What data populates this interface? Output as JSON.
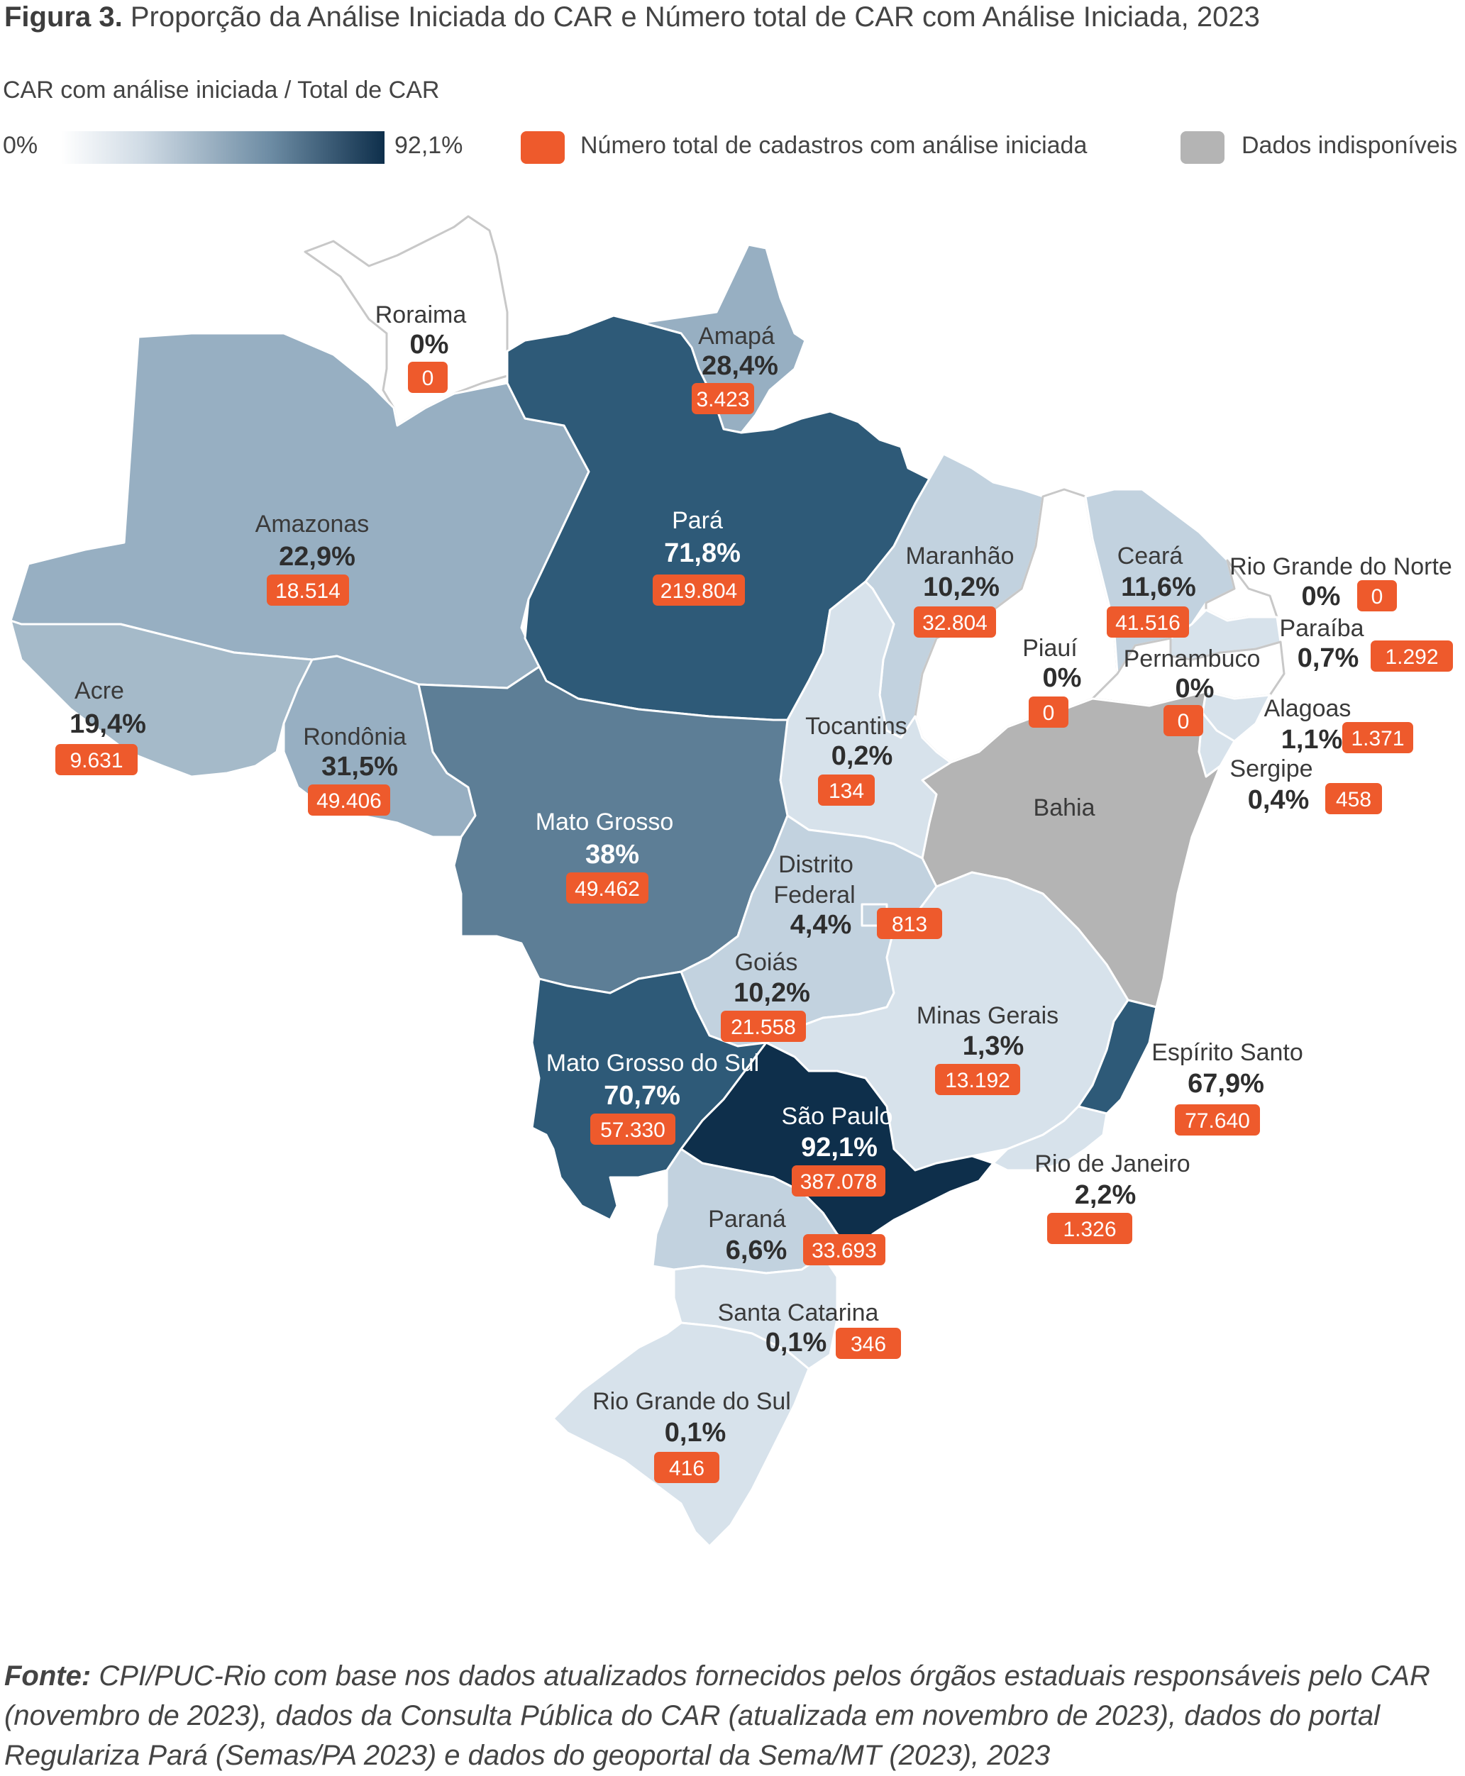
{
  "title": {
    "figure_label": "Figura 3.",
    "text": "Proporção da Análise Iniciada do CAR e Número total de CAR com Análise Iniciada, 2023"
  },
  "legend": {
    "subtitle": "CAR com análise iniciada / Total de CAR",
    "scale_min": "0%",
    "scale_max": "92,1%",
    "count_label": "Número total de cadastros com análise iniciada",
    "unavailable_label": "Dados indisponíveis"
  },
  "colors": {
    "badge": "#ee5a2c",
    "unavailable": "#b4b4b4",
    "scale_low": "#ffffff",
    "scale_high": "#0e2f4b"
  },
  "states": [
    {
      "name": "Roraima",
      "pct": "0%",
      "count": "0",
      "fill": "#ffffff"
    },
    {
      "name": "Amapá",
      "pct": "28,4%",
      "count": "3.423",
      "fill": "#97afc2"
    },
    {
      "name": "Amazonas",
      "pct": "22,9%",
      "count": "18.514",
      "fill": "#97afc2"
    },
    {
      "name": "Pará",
      "pct": "71,8%",
      "count": "219.804",
      "fill": "#2e5a78"
    },
    {
      "name": "Maranhão",
      "pct": "10,2%",
      "count": "32.804",
      "fill": "#c2d2df"
    },
    {
      "name": "Ceará",
      "pct": "11,6%",
      "count": "41.516",
      "fill": "#c2d2df"
    },
    {
      "name": "Rio Grande do Norte",
      "pct": "0%",
      "count": "0",
      "fill": "#ffffff"
    },
    {
      "name": "Paraíba",
      "pct": "0,7%",
      "count": "1.292",
      "fill": "#d7e2eb"
    },
    {
      "name": "Piauí",
      "pct": "0%",
      "count": "0",
      "fill": "#ffffff"
    },
    {
      "name": "Pernambuco",
      "pct": "0%",
      "count": "0",
      "fill": "#ffffff"
    },
    {
      "name": "Alagoas",
      "pct": "1,1%",
      "count": "1.371",
      "fill": "#d7e2eb"
    },
    {
      "name": "Sergipe",
      "pct": "0,4%",
      "count": "458",
      "fill": "#d7e2eb"
    },
    {
      "name": "Acre",
      "pct": "19,4%",
      "count": "9.631",
      "fill": "#a5bac9"
    },
    {
      "name": "Rondônia",
      "pct": "31,5%",
      "count": "49.406",
      "fill": "#97afc2"
    },
    {
      "name": "Tocantins",
      "pct": "0,2%",
      "count": "134",
      "fill": "#d7e2eb"
    },
    {
      "name": "Mato Grosso",
      "pct": "38%",
      "count": "49.462",
      "fill": "#5d7e96"
    },
    {
      "name": "Bahia",
      "pct": "",
      "count": "",
      "fill": "#b4b4b4"
    },
    {
      "name_line1": "Distrito",
      "name_line2": "Federal",
      "pct": "4,4%",
      "count": "813",
      "fill": "#c2d2df"
    },
    {
      "name": "Goiás",
      "pct": "10,2%",
      "count": "21.558",
      "fill": "#c2d2df"
    },
    {
      "name": "Minas Gerais",
      "pct": "1,3%",
      "count": "13.192",
      "fill": "#d7e2eb"
    },
    {
      "name": "Espírito Santo",
      "pct": "67,9%",
      "count": "77.640",
      "fill": "#2e5a78"
    },
    {
      "name": "Mato Grosso do Sul",
      "pct": "70,7%",
      "count": "57.330",
      "fill": "#2e5a78"
    },
    {
      "name": "São Paulo",
      "pct": "92,1%",
      "count": "387.078",
      "fill": "#0e2f4b"
    },
    {
      "name": "Rio de Janeiro",
      "pct": "2,2%",
      "count": "1.326",
      "fill": "#d7e2eb"
    },
    {
      "name": "Paraná",
      "pct": "6,6%",
      "count": "33.693",
      "fill": "#c2d2df"
    },
    {
      "name": "Santa Catarina",
      "pct": "0,1%",
      "count": "346",
      "fill": "#d7e2eb"
    },
    {
      "name": "Rio Grande do Sul",
      "pct": "0,1%",
      "count": "416",
      "fill": "#d7e2eb"
    }
  ],
  "source": {
    "label": "Fonte:",
    "text": "CPI/PUC-Rio com base nos dados atualizados fornecidos pelos órgãos estaduais responsáveis pelo CAR (novembro de 2023), dados da Consulta Pública do CAR (atualizada em novembro de 2023), dados do portal Regulariza Pará (Semas/PA 2023) e dados do geoportal da Sema/MT (2023), 2023"
  }
}
